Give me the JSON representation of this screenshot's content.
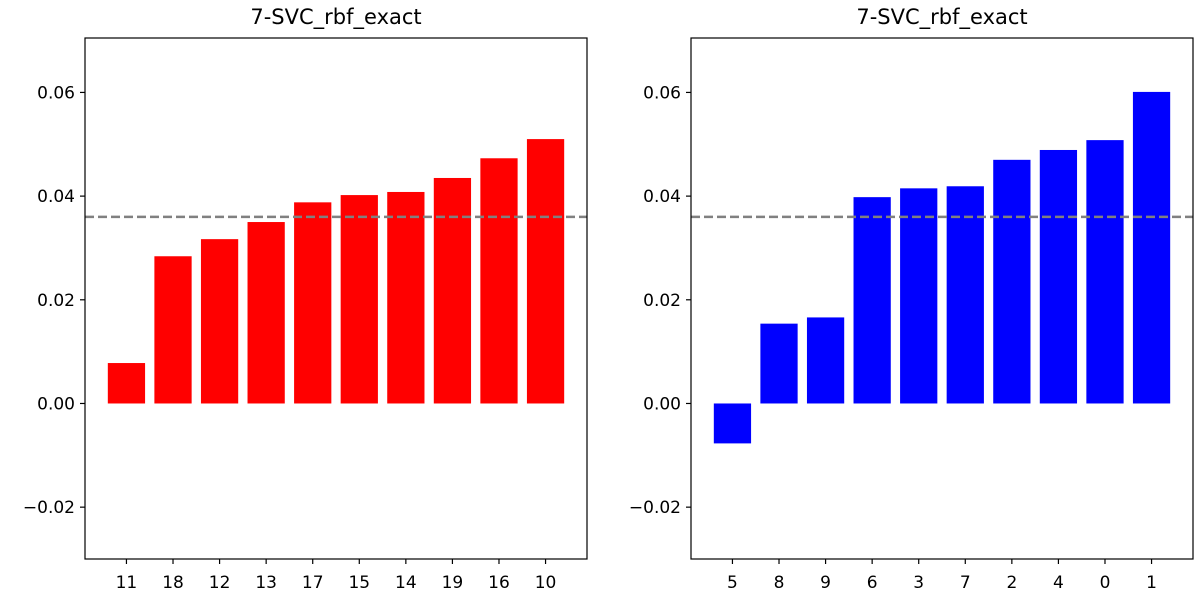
{
  "chart_data": [
    {
      "type": "bar",
      "title": "7-SVC_rbf_exact",
      "xlabel": "",
      "ylabel": "",
      "categories": [
        "11",
        "18",
        "12",
        "13",
        "17",
        "15",
        "14",
        "19",
        "16",
        "10"
      ],
      "values": [
        0.0078,
        0.0284,
        0.0317,
        0.035,
        0.0388,
        0.0402,
        0.0408,
        0.0435,
        0.0473,
        0.051
      ],
      "bar_color": "#ff0000",
      "reference_line": {
        "y": 0.036,
        "style": "dashed",
        "color": "#808080"
      },
      "ylim": [
        -0.03,
        0.0705
      ],
      "yticks": [
        -0.02,
        0.0,
        0.02,
        0.04,
        0.06
      ],
      "ytick_labels": [
        "−0.02",
        "0.00",
        "0.02",
        "0.04",
        "0.06"
      ],
      "grid": false,
      "legend": "none"
    },
    {
      "type": "bar",
      "title": "7-SVC_rbf_exact",
      "xlabel": "",
      "ylabel": "",
      "categories": [
        "5",
        "8",
        "9",
        "6",
        "3",
        "7",
        "2",
        "4",
        "0",
        "1"
      ],
      "values": [
        -0.0077,
        0.0154,
        0.0166,
        0.0398,
        0.0415,
        0.0419,
        0.047,
        0.0489,
        0.0508,
        0.0601
      ],
      "bar_color": "#0000ff",
      "reference_line": {
        "y": 0.036,
        "style": "dashed",
        "color": "#808080"
      },
      "ylim": [
        -0.03,
        0.0705
      ],
      "yticks": [
        -0.02,
        0.0,
        0.02,
        0.04,
        0.06
      ],
      "ytick_labels": [
        "−0.02",
        "0.00",
        "0.02",
        "0.04",
        "0.06"
      ],
      "grid": false,
      "legend": "none"
    }
  ]
}
